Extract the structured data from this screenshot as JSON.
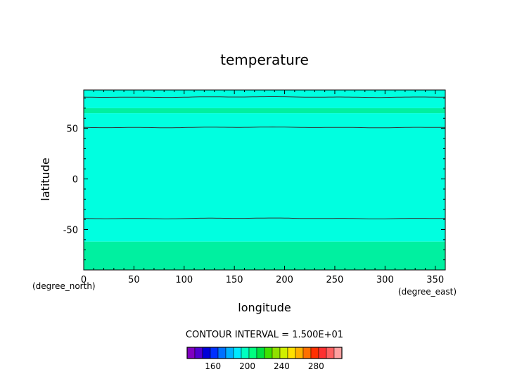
{
  "chart_data": {
    "type": "heatmap",
    "title": "temperature",
    "xlabel": "longitude",
    "ylabel": "latitude",
    "x_units": "(degree_east)",
    "y_units": "(degree_north)",
    "xlim": [
      0,
      360
    ],
    "ylim": [
      -90,
      90
    ],
    "x_ticks": [
      0,
      50,
      100,
      150,
      200,
      250,
      300,
      350
    ],
    "y_ticks": [
      -50,
      0,
      50
    ],
    "contour_interval_label": "CONTOUR INTERVAL = 1.500E+01",
    "bands": [
      {
        "lat_from": 70,
        "lat_to": 88,
        "color": "#00ffe0"
      },
      {
        "lat_from": 65,
        "lat_to": 70,
        "color": "#00f0a0"
      },
      {
        "lat_from": -62,
        "lat_to": 65,
        "color": "#00ffe0"
      },
      {
        "lat_from": -90,
        "lat_to": -62,
        "color": "#00f0a0"
      }
    ],
    "contours": [
      {
        "lat": 81,
        "color": "#333333"
      },
      {
        "lat": 51,
        "color": "#333333"
      },
      {
        "lat": -39,
        "color": "#333333"
      }
    ],
    "colorbar": {
      "vmin": 130,
      "vmax": 310,
      "colors": [
        "#8000c0",
        "#5000d0",
        "#0000d8",
        "#0030ff",
        "#0070ff",
        "#00b0ff",
        "#00e8ff",
        "#00ffc0",
        "#00ff80",
        "#00e040",
        "#40e000",
        "#90e000",
        "#d0f000",
        "#ffe000",
        "#ffb000",
        "#ff7000",
        "#ff3000",
        "#ff3030",
        "#ff6060",
        "#ffa0a0"
      ],
      "tick_labels": [
        160,
        200,
        240,
        280
      ]
    }
  }
}
